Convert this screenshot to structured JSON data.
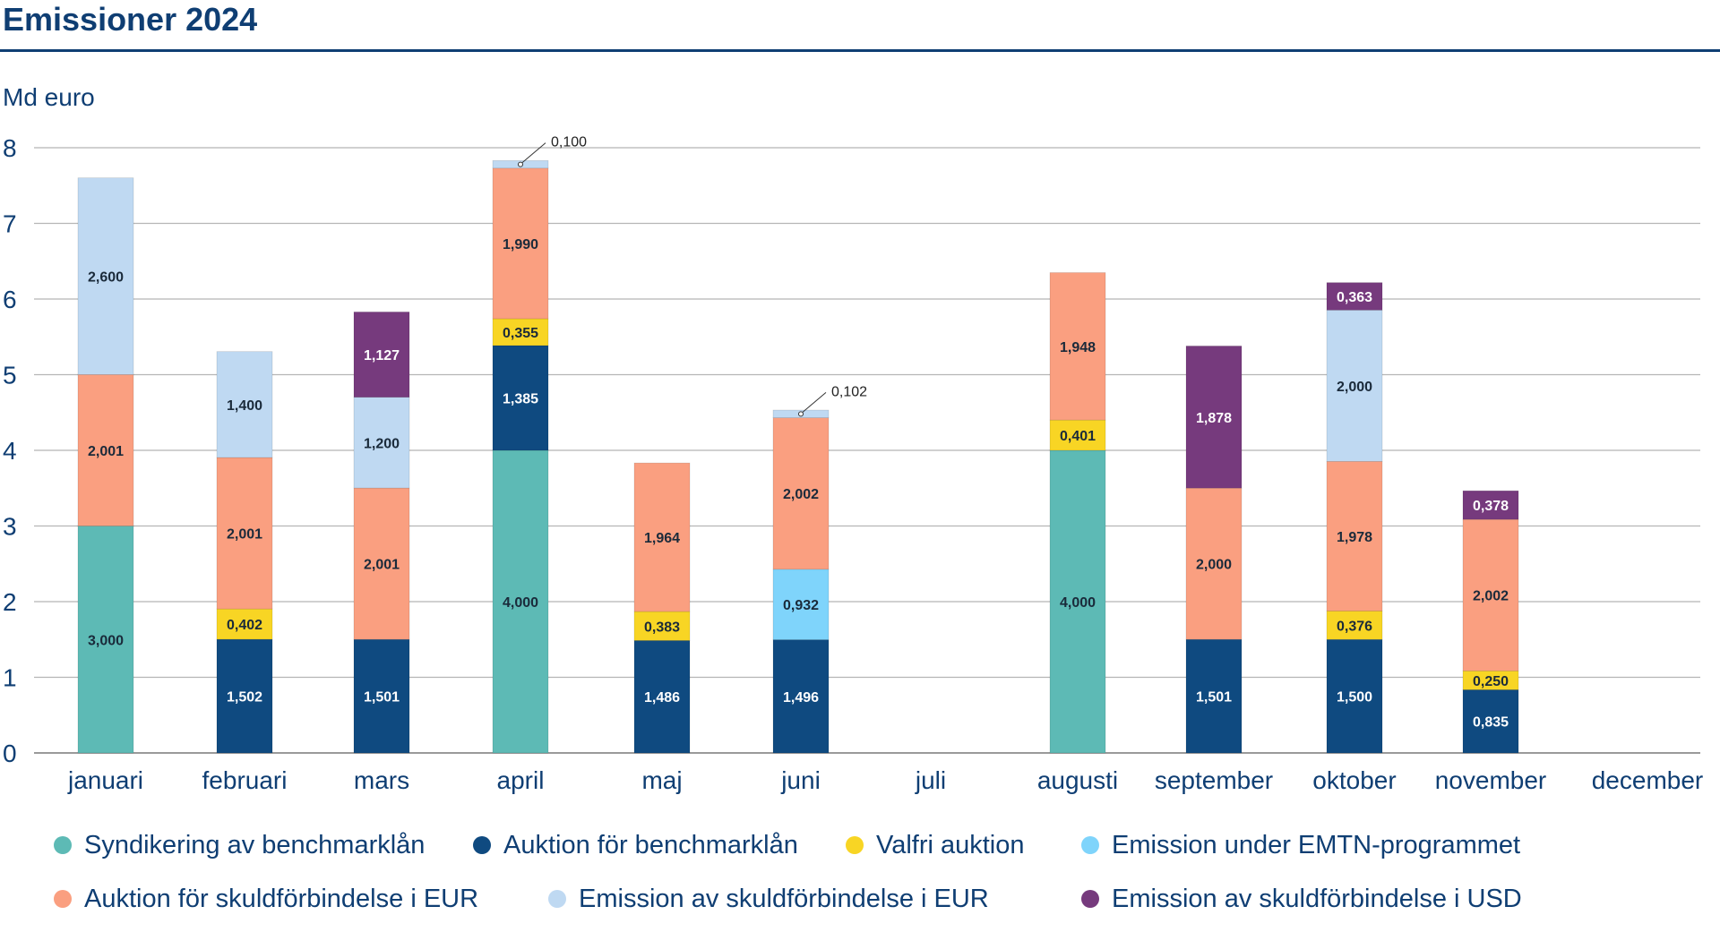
{
  "chart_data": {
    "type": "bar",
    "stacked": true,
    "title": "Emissioner 2024",
    "ylabel": "Md euro",
    "ylim": [
      0,
      8
    ],
    "yticks": [
      0,
      1,
      2,
      3,
      4,
      5,
      6,
      7,
      8
    ],
    "grid": true,
    "legend_position": "bottom",
    "categories": [
      "januari",
      "februari",
      "mars",
      "april",
      "maj",
      "juni",
      "juli",
      "augusti",
      "september",
      "oktober",
      "november",
      "december"
    ],
    "series": [
      {
        "name": "Syndikering av benchmarklån",
        "color": "#5dbab5",
        "text_color": "#1a2a3a",
        "values": [
          3.0,
          null,
          null,
          4.0,
          null,
          null,
          null,
          4.0,
          null,
          null,
          null,
          null
        ],
        "labels": [
          "3,000",
          "",
          "",
          "4,000",
          "",
          "",
          "",
          "4,000",
          "",
          "",
          "",
          ""
        ]
      },
      {
        "name": "Auktion för benchmarklån",
        "color": "#0f4a80",
        "text_color": "#ffffff",
        "values": [
          null,
          1.502,
          1.501,
          1.385,
          1.486,
          1.496,
          null,
          null,
          1.501,
          1.5,
          0.835,
          null
        ],
        "labels": [
          "",
          "1,502",
          "1,501",
          "1,385",
          "1,486",
          "1,496",
          "",
          "",
          "1,501",
          "1,500",
          "0,835",
          ""
        ]
      },
      {
        "name": "Valfri auktion",
        "color": "#f8d524",
        "text_color": "#1a2a3a",
        "values": [
          null,
          0.402,
          null,
          0.355,
          0.383,
          null,
          null,
          0.401,
          null,
          0.376,
          0.25,
          null
        ],
        "labels": [
          "",
          "0,402",
          "",
          "0,355",
          "0,383",
          "",
          "",
          "0,401",
          "",
          "0,376",
          "0,250",
          ""
        ]
      },
      {
        "name": "Emission under EMTN-programmet",
        "color": "#7fd4fb",
        "text_color": "#1a2a3a",
        "values": [
          null,
          null,
          null,
          null,
          null,
          0.932,
          null,
          null,
          null,
          null,
          null,
          null
        ],
        "labels": [
          "",
          "",
          "",
          "",
          "",
          "0,932",
          "",
          "",
          "",
          "",
          "",
          ""
        ]
      },
      {
        "name": "Auktion för skuldförbindelse i EUR",
        "color": "#fa9f80",
        "text_color": "#1a2a3a",
        "values": [
          2.001,
          2.001,
          2.001,
          1.99,
          1.964,
          2.002,
          null,
          1.948,
          2.0,
          1.978,
          2.002,
          null
        ],
        "labels": [
          "2,001",
          "2,001",
          "2,001",
          "1,990",
          "1,964",
          "2,002",
          "",
          "1,948",
          "2,000",
          "1,978",
          "2,002",
          ""
        ]
      },
      {
        "name": "Emission av skuldförbindelse i EUR",
        "color": "#bfd9f2",
        "text_color": "#1a2a3a",
        "values": [
          2.6,
          1.4,
          1.2,
          0.1,
          null,
          0.102,
          null,
          null,
          null,
          2.0,
          null,
          null
        ],
        "labels": [
          "2,600",
          "1,400",
          "1,200",
          "0,100",
          "",
          "0,102",
          "",
          "",
          "",
          "2,000",
          "",
          ""
        ]
      },
      {
        "name": "Emission av skuldförbindelse i USD",
        "color": "#763a7d",
        "text_color": "#ffffff",
        "values": [
          null,
          null,
          1.127,
          null,
          null,
          null,
          null,
          null,
          1.878,
          0.363,
          0.378,
          null
        ],
        "labels": [
          "",
          "",
          "1,127",
          "",
          "",
          "",
          "",
          "",
          "1,878",
          "0,363",
          "0,378",
          ""
        ]
      }
    ],
    "callout_labels": [
      "0,100",
      "0,102"
    ]
  }
}
